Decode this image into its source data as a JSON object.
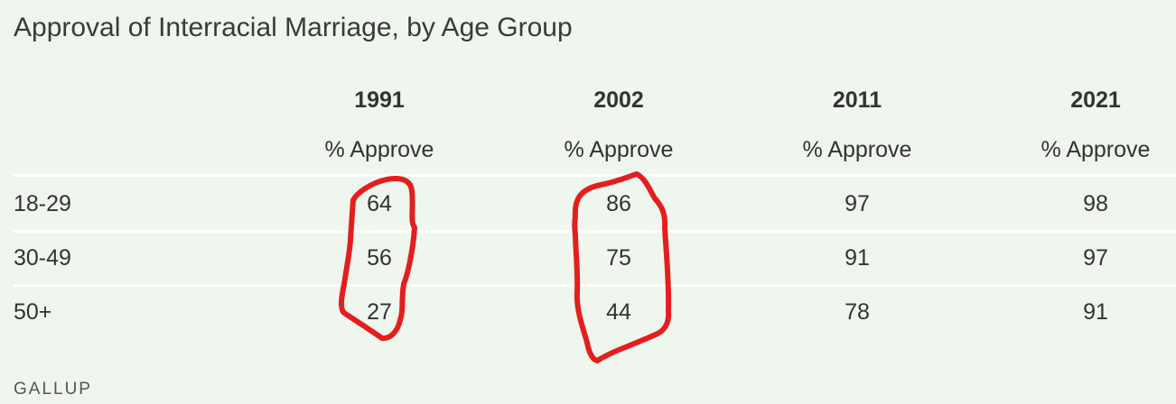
{
  "chart_data": {
    "type": "table",
    "title": "Approval of Interracial Marriage, by Age Group",
    "columns": [
      {
        "year": "1991",
        "subheader": "% Approve"
      },
      {
        "year": "2002",
        "subheader": "% Approve"
      },
      {
        "year": "2011",
        "subheader": "% Approve"
      },
      {
        "year": "2021",
        "subheader": "% Approve"
      }
    ],
    "rows": [
      {
        "label": "18-29",
        "values": [
          "64",
          "86",
          "97",
          "98"
        ]
      },
      {
        "label": "30-49",
        "values": [
          "56",
          "75",
          "91",
          "97"
        ]
      },
      {
        "label": "50+",
        "values": [
          "27",
          "44",
          "78",
          "91"
        ]
      }
    ],
    "source": "GALLUP",
    "annotation_color": "#e41e1e"
  }
}
